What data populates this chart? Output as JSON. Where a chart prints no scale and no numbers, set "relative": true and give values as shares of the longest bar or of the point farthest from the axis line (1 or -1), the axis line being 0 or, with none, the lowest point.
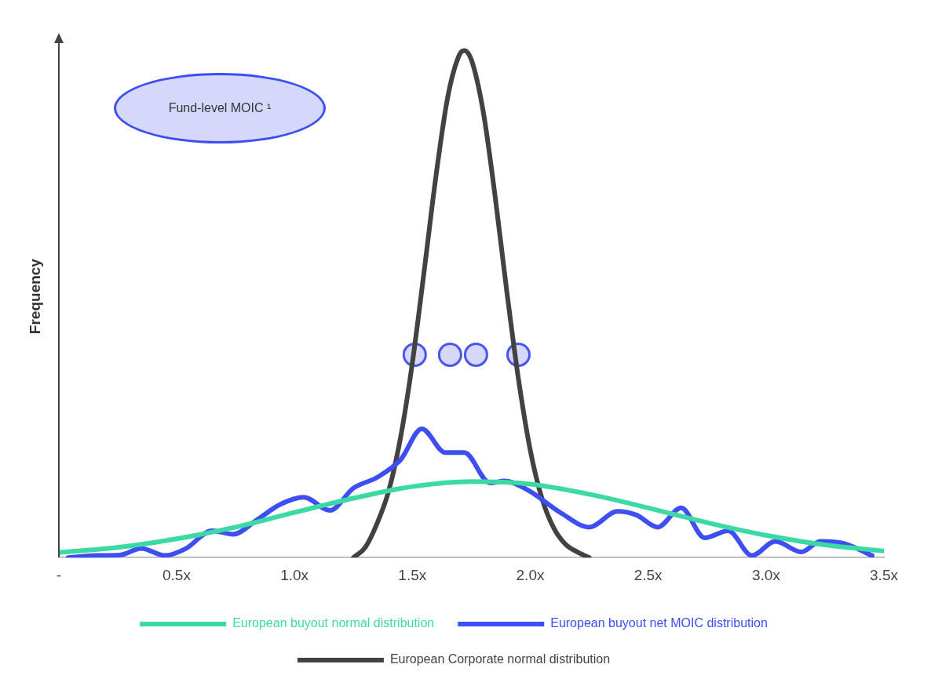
{
  "chart_data": {
    "type": "line",
    "relative": true,
    "ylabel": "Frequency",
    "legend": "bottom",
    "grid": false,
    "xlim": [
      0,
      3.5
    ],
    "xticks": [
      {
        "value": 0,
        "label": "-"
      },
      {
        "value": 0.5,
        "label": "0.5x"
      },
      {
        "value": 1,
        "label": "1.0x"
      },
      {
        "value": 1.5,
        "label": "1.5x"
      },
      {
        "value": 2,
        "label": "2.0x"
      },
      {
        "value": 2.5,
        "label": "2.5x"
      },
      {
        "value": 3,
        "label": "3.0x"
      },
      {
        "value": 3.5,
        "label": "3.5x"
      }
    ],
    "annotations": [
      "Fund-level MOIC ¹"
    ],
    "series": [
      {
        "name": "European buyout normal distribution",
        "color": "#3dd9a5",
        "x": [
          0,
          0.25,
          0.5,
          0.75,
          1,
          1.25,
          1.5,
          1.75,
          2,
          2.25,
          2.5,
          2.75,
          3,
          3.25,
          3.5
        ],
        "values": [
          0.01,
          0.02,
          0.037,
          0.06,
          0.089,
          0.117,
          0.14,
          0.15,
          0.145,
          0.125,
          0.098,
          0.069,
          0.044,
          0.025,
          0.013
        ]
      },
      {
        "name": "European buyout net MOIC distribution",
        "color": "#3d4ef2",
        "x": [
          0.04,
          0.16,
          0.26,
          0.35,
          0.45,
          0.54,
          0.65,
          0.74,
          0.84,
          0.94,
          1.04,
          1.15,
          1.25,
          1.35,
          1.45,
          1.54,
          1.64,
          1.72,
          1.83,
          1.89,
          1.99,
          2.13,
          2.25,
          2.37,
          2.45,
          2.54,
          2.64,
          2.74,
          2.84,
          2.94,
          3.04,
          3.15,
          3.23,
          3.33,
          3.45
        ],
        "values": [
          0,
          0.004,
          0.005,
          0.018,
          0.004,
          0.018,
          0.053,
          0.046,
          0.074,
          0.105,
          0.119,
          0.093,
          0.137,
          0.158,
          0.193,
          0.254,
          0.207,
          0.207,
          0.147,
          0.151,
          0.133,
          0.088,
          0.06,
          0.091,
          0.084,
          0.06,
          0.098,
          0.039,
          0.053,
          0.004,
          0.032,
          0.011,
          0.032,
          0.028,
          0.004
        ]
      },
      {
        "name": "European Corporate normal distribution",
        "color": "#424242",
        "x": [
          1.25,
          1.3,
          1.35,
          1.4,
          1.45,
          1.5,
          1.55,
          1.6,
          1.65,
          1.7,
          1.72,
          1.75,
          1.8,
          1.85,
          1.9,
          1.95,
          2,
          2.05,
          2.1,
          2.15,
          2.2,
          2.25
        ],
        "values": [
          0,
          0.02,
          0.067,
          0.132,
          0.237,
          0.384,
          0.565,
          0.752,
          0.908,
          0.992,
          1,
          0.982,
          0.881,
          0.716,
          0.527,
          0.352,
          0.212,
          0.116,
          0.058,
          0.026,
          0.011,
          0
        ]
      },
      {
        "type": "scatter",
        "color": "#4a55f0",
        "x": [
          1.51,
          1.66,
          1.77,
          1.95
        ],
        "values": [
          0.4,
          0.4,
          0.4,
          0.4
        ]
      }
    ]
  }
}
